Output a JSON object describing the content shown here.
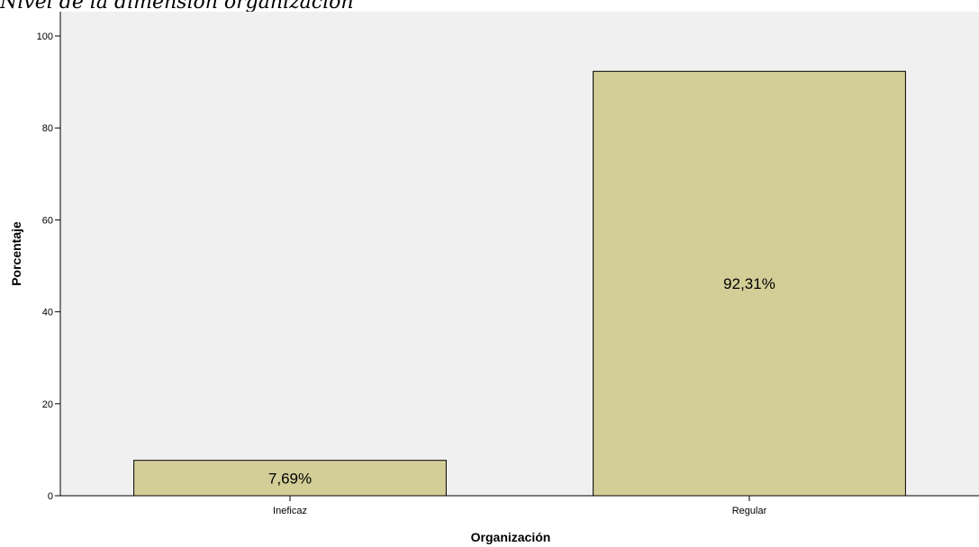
{
  "colors": {
    "plot_bg": "#f0f0f0",
    "bar_fill": "#d3ce97",
    "bar_stroke": "#000000",
    "axis": "#000000"
  },
  "chart_data": {
    "type": "bar",
    "title": "Nivel de la dimensión organización",
    "categories": [
      "Ineficaz",
      "Regular"
    ],
    "values": [
      7.69,
      92.31
    ],
    "data_labels": [
      "7,69%",
      "92,31%"
    ],
    "xlabel": "Organización",
    "ylabel": "Porcentaje",
    "ylim": [
      0,
      100
    ],
    "yticks": [
      0,
      20,
      40,
      60,
      80,
      100
    ],
    "grid": false,
    "legend": "none"
  }
}
